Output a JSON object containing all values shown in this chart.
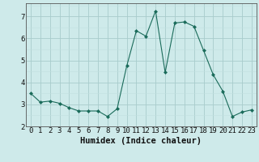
{
  "x": [
    0,
    1,
    2,
    3,
    4,
    5,
    6,
    7,
    8,
    9,
    10,
    11,
    12,
    13,
    14,
    15,
    16,
    17,
    18,
    19,
    20,
    21,
    22,
    23
  ],
  "y": [
    3.5,
    3.1,
    3.15,
    3.05,
    2.85,
    2.7,
    2.7,
    2.7,
    2.45,
    2.8,
    4.75,
    6.35,
    6.1,
    7.25,
    4.45,
    6.7,
    6.75,
    6.55,
    5.45,
    4.35,
    3.6,
    2.45,
    2.65,
    2.75
  ],
  "line_color": "#1a6b5a",
  "marker": "D",
  "marker_size": 2.0,
  "bg_color": "#ceeaea",
  "grid_color_major": "#a8cccc",
  "grid_color_minor": "#c0e0e0",
  "xlabel": "Humidex (Indice chaleur)",
  "xlim": [
    -0.5,
    23.5
  ],
  "ylim": [
    2.0,
    7.6
  ],
  "xtick_labels": [
    "0",
    "1",
    "2",
    "3",
    "4",
    "5",
    "6",
    "7",
    "8",
    "9",
    "10",
    "11",
    "12",
    "13",
    "14",
    "15",
    "16",
    "17",
    "18",
    "19",
    "20",
    "21",
    "22",
    "23"
  ],
  "yticks": [
    2,
    3,
    4,
    5,
    6,
    7
  ],
  "xlabel_fontsize": 7.5,
  "tick_fontsize": 6.5
}
